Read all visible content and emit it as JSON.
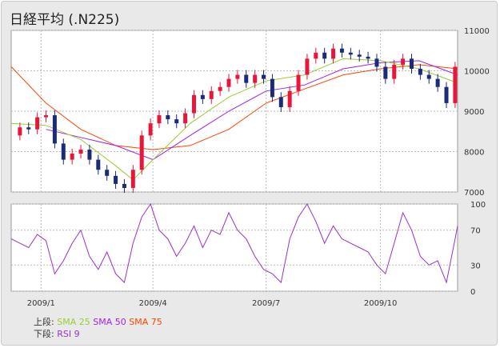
{
  "page_title": "日経平均 (.N225)",
  "chart_data": [
    {
      "type": "candlestick",
      "name": "price",
      "x_range": [
        "2008-12-08",
        "2009-12-02"
      ],
      "ylim": [
        7000,
        11000
      ],
      "y_ticks": [
        7000,
        8000,
        9000,
        10000,
        11000
      ],
      "x_ticks": [
        {
          "date": "2009-01-01",
          "label": "2009/1"
        },
        {
          "date": "2009-04-01",
          "label": "2009/4"
        },
        {
          "date": "2009-07-01",
          "label": "2009/7"
        },
        {
          "date": "2009-10-01",
          "label": "2009/10"
        }
      ],
      "grid": true,
      "close_series": [
        [
          "2008-12-08",
          8400
        ],
        [
          "2008-12-15",
          8600
        ],
        [
          "2008-12-22",
          8550
        ],
        [
          "2008-12-29",
          8850
        ],
        [
          "2009-01-05",
          8900
        ],
        [
          "2009-01-12",
          8200
        ],
        [
          "2009-01-19",
          7800
        ],
        [
          "2009-01-26",
          7950
        ],
        [
          "2009-02-02",
          8050
        ],
        [
          "2009-02-09",
          7800
        ],
        [
          "2009-02-16",
          7550
        ],
        [
          "2009-02-23",
          7400
        ],
        [
          "2009-03-02",
          7200
        ],
        [
          "2009-03-09",
          7100
        ],
        [
          "2009-03-16",
          7550
        ],
        [
          "2009-03-23",
          8400
        ],
        [
          "2009-03-30",
          8700
        ],
        [
          "2009-04-06",
          8900
        ],
        [
          "2009-04-13",
          8800
        ],
        [
          "2009-04-20",
          8700
        ],
        [
          "2009-04-27",
          8950
        ],
        [
          "2009-05-04",
          9400
        ],
        [
          "2009-05-11",
          9300
        ],
        [
          "2009-05-18",
          9500
        ],
        [
          "2009-05-25",
          9600
        ],
        [
          "2009-06-01",
          9800
        ],
        [
          "2009-06-08",
          9900
        ],
        [
          "2009-06-15",
          9700
        ],
        [
          "2009-06-22",
          9900
        ],
        [
          "2009-06-29",
          9800
        ],
        [
          "2009-07-06",
          9350
        ],
        [
          "2009-07-13",
          9100
        ],
        [
          "2009-07-20",
          9500
        ],
        [
          "2009-07-27",
          9900
        ],
        [
          "2009-08-03",
          10300
        ],
        [
          "2009-08-10",
          10450
        ],
        [
          "2009-08-17",
          10300
        ],
        [
          "2009-08-24",
          10550
        ],
        [
          "2009-08-31",
          10450
        ],
        [
          "2009-09-07",
          10400
        ],
        [
          "2009-09-14",
          10350
        ],
        [
          "2009-09-21",
          10300
        ],
        [
          "2009-09-28",
          10100
        ],
        [
          "2009-10-05",
          9800
        ],
        [
          "2009-10-12",
          10150
        ],
        [
          "2009-10-19",
          10300
        ],
        [
          "2009-10-26",
          10050
        ],
        [
          "2009-11-02",
          9900
        ],
        [
          "2009-11-09",
          9800
        ],
        [
          "2009-11-16",
          9600
        ],
        [
          "2009-11-23",
          9200
        ],
        [
          "2009-11-30",
          10100
        ]
      ],
      "sma25": [
        [
          "2008-12-08",
          8700
        ],
        [
          "2009-01-05",
          8650
        ],
        [
          "2009-02-02",
          8300
        ],
        [
          "2009-03-02",
          7650
        ],
        [
          "2009-03-16",
          7300
        ],
        [
          "2009-04-01",
          7800
        ],
        [
          "2009-05-01",
          8700
        ],
        [
          "2009-06-01",
          9350
        ],
        [
          "2009-07-01",
          9750
        ],
        [
          "2009-08-01",
          9900
        ],
        [
          "2009-09-01",
          10300
        ],
        [
          "2009-10-01",
          10250
        ],
        [
          "2009-11-01",
          10050
        ],
        [
          "2009-12-02",
          9700
        ]
      ],
      "sma50": [
        [
          "2009-01-05",
          8550
        ],
        [
          "2009-02-02",
          8350
        ],
        [
          "2009-03-02",
          8150
        ],
        [
          "2009-04-01",
          7800
        ],
        [
          "2009-05-01",
          8400
        ],
        [
          "2009-06-01",
          9000
        ],
        [
          "2009-07-01",
          9500
        ],
        [
          "2009-08-01",
          9650
        ],
        [
          "2009-09-01",
          10050
        ],
        [
          "2009-10-01",
          10200
        ],
        [
          "2009-11-01",
          10250
        ],
        [
          "2009-12-02",
          9900
        ]
      ],
      "sma75": [
        [
          "2008-12-08",
          10100
        ],
        [
          "2009-01-05",
          9200
        ],
        [
          "2009-02-02",
          8550
        ],
        [
          "2009-03-02",
          8150
        ],
        [
          "2009-04-01",
          8050
        ],
        [
          "2009-05-01",
          8150
        ],
        [
          "2009-06-01",
          8550
        ],
        [
          "2009-07-01",
          9200
        ],
        [
          "2009-08-01",
          9550
        ],
        [
          "2009-09-01",
          9900
        ],
        [
          "2009-10-01",
          10050
        ],
        [
          "2009-11-01",
          10150
        ],
        [
          "2009-12-02",
          10050
        ]
      ]
    },
    {
      "type": "line",
      "name": "RSI 9",
      "ylim": [
        0,
        100
      ],
      "y_ticks": [
        0,
        30,
        70,
        100
      ],
      "grid": true,
      "points": [
        [
          "2008-12-08",
          60
        ],
        [
          "2008-12-15",
          55
        ],
        [
          "2008-12-22",
          50
        ],
        [
          "2008-12-29",
          65
        ],
        [
          "2009-01-05",
          58
        ],
        [
          "2009-01-12",
          20
        ],
        [
          "2009-01-19",
          35
        ],
        [
          "2009-01-26",
          55
        ],
        [
          "2009-02-02",
          70
        ],
        [
          "2009-02-09",
          40
        ],
        [
          "2009-02-16",
          25
        ],
        [
          "2009-02-23",
          45
        ],
        [
          "2009-03-02",
          20
        ],
        [
          "2009-03-09",
          10
        ],
        [
          "2009-03-16",
          55
        ],
        [
          "2009-03-23",
          85
        ],
        [
          "2009-03-30",
          100
        ],
        [
          "2009-04-06",
          70
        ],
        [
          "2009-04-13",
          60
        ],
        [
          "2009-04-20",
          40
        ],
        [
          "2009-04-27",
          55
        ],
        [
          "2009-05-04",
          75
        ],
        [
          "2009-05-11",
          50
        ],
        [
          "2009-05-18",
          70
        ],
        [
          "2009-05-25",
          65
        ],
        [
          "2009-06-01",
          90
        ],
        [
          "2009-06-08",
          70
        ],
        [
          "2009-06-15",
          60
        ],
        [
          "2009-06-22",
          40
        ],
        [
          "2009-06-29",
          25
        ],
        [
          "2009-07-06",
          20
        ],
        [
          "2009-07-13",
          10
        ],
        [
          "2009-07-20",
          60
        ],
        [
          "2009-07-27",
          85
        ],
        [
          "2009-08-03",
          100
        ],
        [
          "2009-08-10",
          80
        ],
        [
          "2009-08-17",
          55
        ],
        [
          "2009-08-24",
          75
        ],
        [
          "2009-08-31",
          60
        ],
        [
          "2009-09-07",
          55
        ],
        [
          "2009-09-14",
          50
        ],
        [
          "2009-09-21",
          45
        ],
        [
          "2009-09-28",
          30
        ],
        [
          "2009-10-05",
          20
        ],
        [
          "2009-10-12",
          55
        ],
        [
          "2009-10-19",
          90
        ],
        [
          "2009-10-26",
          70
        ],
        [
          "2009-11-02",
          40
        ],
        [
          "2009-11-09",
          30
        ],
        [
          "2009-11-16",
          35
        ],
        [
          "2009-11-23",
          10
        ],
        [
          "2009-11-30",
          60
        ],
        [
          "2009-12-02",
          75
        ]
      ]
    }
  ],
  "legend": {
    "upper_label": "上段:",
    "lower_label": "下段:",
    "upper_items": [
      {
        "label": "SMA 25",
        "color": "#9acd32"
      },
      {
        "label": "SMA 50",
        "color": "#a020f0"
      },
      {
        "label": "SMA 75",
        "color": "#ff4500"
      }
    ],
    "lower_items": [
      {
        "label": "RSI 9",
        "color": "#9932cc"
      }
    ]
  },
  "colors": {
    "up_candle": "#e8173a",
    "down_candle": "#1b2a7a",
    "sma25": "#9acd32",
    "sma50": "#a020f0",
    "sma75": "#ff4500",
    "rsi": "#9932cc"
  }
}
